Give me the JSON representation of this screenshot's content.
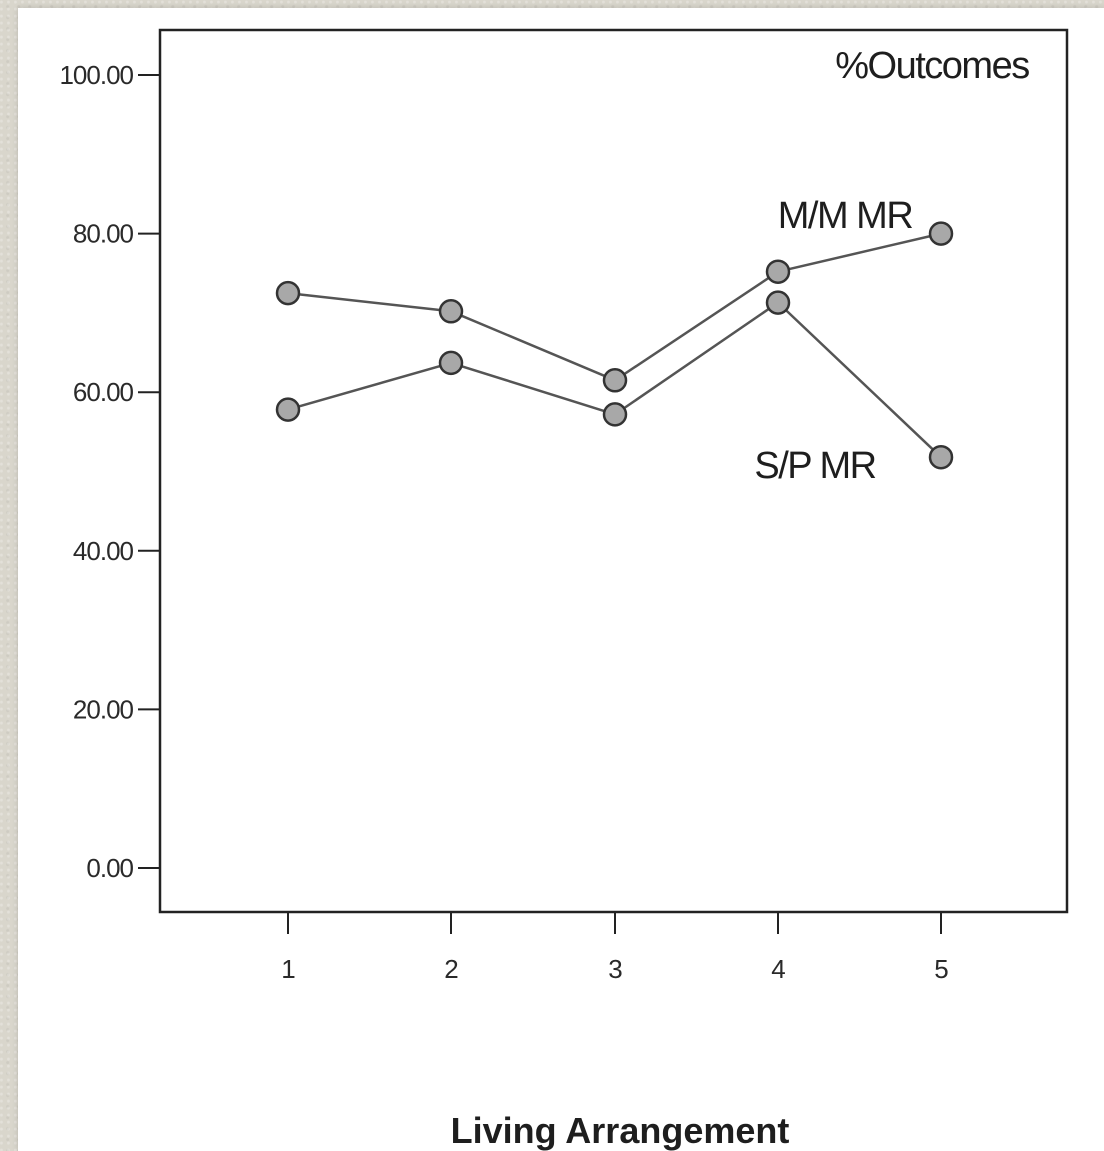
{
  "chart_data": {
    "type": "line",
    "title": "",
    "xlabel": "Living Arrangement",
    "ylabel": "",
    "categories": [
      "1",
      "2",
      "3",
      "4",
      "5"
    ],
    "ylim": [
      0,
      100
    ],
    "yticks": [
      "0.00",
      "20.00",
      "40.00",
      "60.00",
      "80.00",
      "100.00"
    ],
    "grid": false,
    "legend": "none",
    "annotations": {
      "corner": "%Outcomes"
    },
    "series": [
      {
        "name": "M/M MR",
        "values": [
          72.5,
          70.2,
          61.5,
          75.2,
          80.0
        ],
        "color": "#a8a8a8"
      },
      {
        "name": "S/P MR",
        "values": [
          57.8,
          63.7,
          57.2,
          71.3,
          51.8
        ],
        "color": "#a8a8a8"
      }
    ],
    "colors": {
      "line": "#555555",
      "axis": "#222222",
      "marker_fill": "#a8a8a8",
      "marker_stroke": "#333333"
    }
  }
}
